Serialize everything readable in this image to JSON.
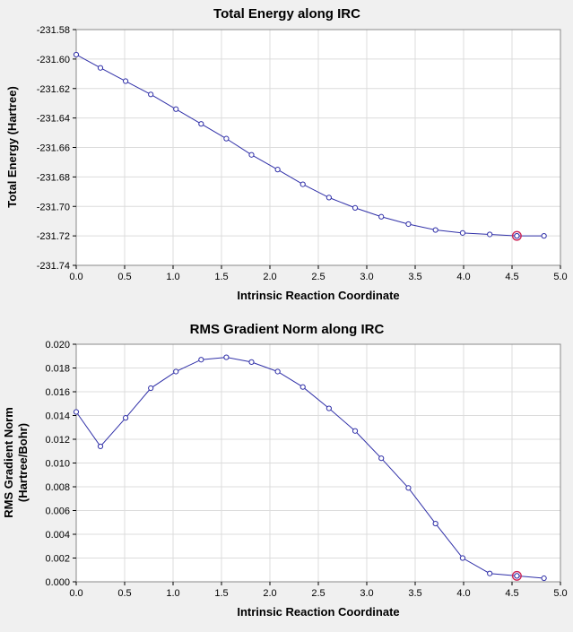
{
  "page": {
    "background_color": "#f0f0f0",
    "plot_background_color": "#ffffff",
    "grid_color": "#dcdcdc",
    "border_color": "#8a8a8a",
    "line_color": "#3030a8",
    "marker_color": "#3030a8",
    "highlight_color": "#cc2255"
  },
  "chart_data": [
    {
      "type": "line",
      "title": "Total Energy along IRC",
      "xlabel": "Intrinsic Reaction Coordinate",
      "ylabel": "Total Energy (Hartree)",
      "ylabel_line2": "",
      "xlim": [
        0,
        5
      ],
      "ylim": [
        -231.74,
        -231.58
      ],
      "grid": true,
      "legend": "none",
      "x_tick_values": [
        0,
        0.5,
        1,
        1.5,
        2,
        2.5,
        3,
        3.5,
        4,
        4.5,
        5
      ],
      "x_tick_labels": [
        "0.0",
        "0.5",
        "1.0",
        "1.5",
        "2.0",
        "2.5",
        "3.0",
        "3.5",
        "4.0",
        "4.5",
        "5.0"
      ],
      "y_tick_values": [
        -231.74,
        -231.72,
        -231.7,
        -231.68,
        -231.66,
        -231.64,
        -231.62,
        -231.6,
        -231.58
      ],
      "y_tick_labels": [
        "-231.74",
        "-231.72",
        "-231.70",
        "-231.68",
        "-231.66",
        "-231.64",
        "-231.62",
        "-231.60",
        "-231.58"
      ],
      "x": [
        0.0,
        0.25,
        0.51,
        0.77,
        1.03,
        1.29,
        1.55,
        1.81,
        2.08,
        2.34,
        2.61,
        2.88,
        3.15,
        3.43,
        3.71,
        3.99,
        4.27,
        4.55,
        4.83
      ],
      "y": [
        -231.597,
        -231.606,
        -231.615,
        -231.624,
        -231.634,
        -231.644,
        -231.654,
        -231.665,
        -231.675,
        -231.685,
        -231.694,
        -231.701,
        -231.707,
        -231.712,
        -231.716,
        -231.718,
        -231.719,
        -231.72,
        -231.72
      ],
      "highlight_index": 17
    },
    {
      "type": "line",
      "title": "RMS Gradient Norm along IRC",
      "xlabel": "Intrinsic Reaction Coordinate",
      "ylabel": "RMS Gradient Norm",
      "ylabel_line2": "(Hartree/Bohr)",
      "xlim": [
        0,
        5
      ],
      "ylim": [
        0,
        0.02
      ],
      "grid": true,
      "legend": "none",
      "x_tick_values": [
        0,
        0.5,
        1,
        1.5,
        2,
        2.5,
        3,
        3.5,
        4,
        4.5,
        5
      ],
      "x_tick_labels": [
        "0.0",
        "0.5",
        "1.0",
        "1.5",
        "2.0",
        "2.5",
        "3.0",
        "3.5",
        "4.0",
        "4.5",
        "5.0"
      ],
      "y_tick_values": [
        0,
        0.002,
        0.004,
        0.006,
        0.008,
        0.01,
        0.012,
        0.014,
        0.016,
        0.018,
        0.02
      ],
      "y_tick_labels": [
        "0.000",
        "0.002",
        "0.004",
        "0.006",
        "0.008",
        "0.010",
        "0.012",
        "0.014",
        "0.016",
        "0.018",
        "0.020"
      ],
      "x": [
        0.0,
        0.25,
        0.51,
        0.77,
        1.03,
        1.29,
        1.55,
        1.81,
        2.08,
        2.34,
        2.61,
        2.88,
        3.15,
        3.43,
        3.71,
        3.99,
        4.27,
        4.55,
        4.83
      ],
      "y": [
        0.0143,
        0.0114,
        0.0138,
        0.0163,
        0.0177,
        0.0187,
        0.0189,
        0.0185,
        0.0177,
        0.0164,
        0.0146,
        0.0127,
        0.0104,
        0.0079,
        0.0049,
        0.002,
        0.0007,
        0.0005,
        0.0003
      ],
      "highlight_index": 17
    }
  ]
}
